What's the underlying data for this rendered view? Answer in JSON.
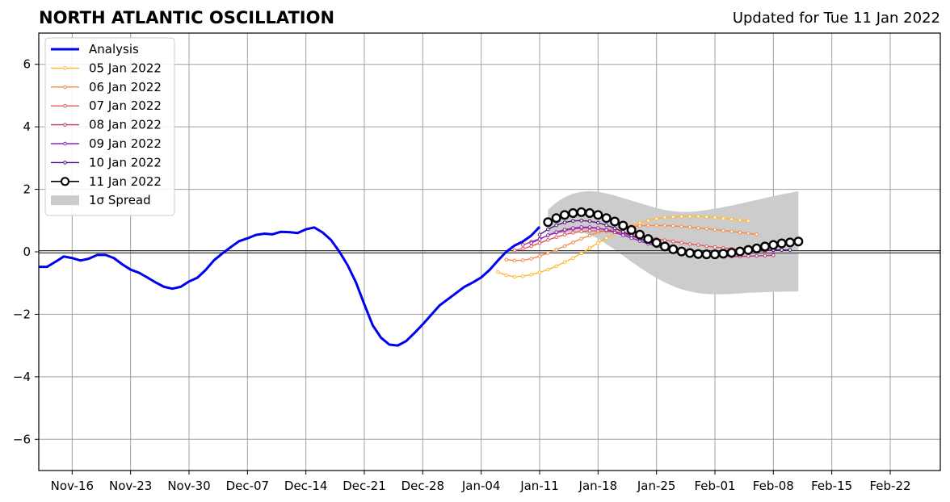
{
  "title": "NORTH ATLANTIC OSCILLATION",
  "subtitle": "Updated for Tue 11 Jan 2022",
  "chart_data": {
    "type": "line",
    "title": "NORTH ATLANTIC OSCILLATION",
    "xlabel": "",
    "ylabel": "",
    "x_unit": "date",
    "xlim": [
      "2021-11-12",
      "2022-02-28"
    ],
    "ylim": [
      -7,
      7
    ],
    "grid": true,
    "legend_position": "top-left",
    "xticks": [
      {
        "date": "2021-11-16",
        "label": "Nov-16"
      },
      {
        "date": "2021-11-23",
        "label": "Nov-23"
      },
      {
        "date": "2021-11-30",
        "label": "Nov-30"
      },
      {
        "date": "2021-12-07",
        "label": "Dec-07"
      },
      {
        "date": "2021-12-14",
        "label": "Dec-14"
      },
      {
        "date": "2021-12-21",
        "label": "Dec-21"
      },
      {
        "date": "2021-12-28",
        "label": "Dec-28"
      },
      {
        "date": "2022-01-04",
        "label": "Jan-04"
      },
      {
        "date": "2022-01-11",
        "label": "Jan-11"
      },
      {
        "date": "2022-01-18",
        "label": "Jan-18"
      },
      {
        "date": "2022-01-25",
        "label": "Jan-25"
      },
      {
        "date": "2022-02-01",
        "label": "Feb-01"
      },
      {
        "date": "2022-02-08",
        "label": "Feb-08"
      },
      {
        "date": "2022-02-15",
        "label": "Feb-15"
      },
      {
        "date": "2022-02-22",
        "label": "Feb-22"
      }
    ],
    "yticks": [
      {
        "value": 6,
        "label": "6"
      },
      {
        "value": 4,
        "label": "4"
      },
      {
        "value": 2,
        "label": "2"
      },
      {
        "value": 0,
        "label": "0"
      },
      {
        "value": -2,
        "label": "−2"
      },
      {
        "value": -4,
        "label": "−4"
      },
      {
        "value": -6,
        "label": "−6"
      }
    ],
    "series": [
      {
        "name": "Analysis",
        "color": "#0000ee",
        "style": "analysis",
        "start": "2021-11-12",
        "values": [
          -0.48,
          -0.48,
          -0.32,
          -0.15,
          -0.2,
          -0.28,
          -0.22,
          -0.1,
          -0.1,
          -0.2,
          -0.4,
          -0.57,
          -0.67,
          -0.82,
          -0.98,
          -1.12,
          -1.18,
          -1.12,
          -0.95,
          -0.83,
          -0.58,
          -0.27,
          -0.05,
          0.15,
          0.34,
          0.43,
          0.54,
          0.58,
          0.56,
          0.64,
          0.63,
          0.6,
          0.72,
          0.78,
          0.62,
          0.38,
          0.01,
          -0.43,
          -0.98,
          -1.68,
          -2.35,
          -2.75,
          -2.97,
          -3.0,
          -2.86,
          -2.6,
          -2.32,
          -2.02,
          -1.72,
          -1.52,
          -1.32,
          -1.12,
          -0.98,
          -0.82,
          -0.58,
          -0.28,
          0.0,
          0.2,
          0.33,
          0.52,
          0.8
        ]
      },
      {
        "name": "05 Jan 2022",
        "color": "#ffb830",
        "style": "small",
        "start": "2022-01-06",
        "values": [
          -0.65,
          -0.75,
          -0.8,
          -0.78,
          -0.73,
          -0.66,
          -0.57,
          -0.46,
          -0.33,
          -0.2,
          -0.05,
          0.12,
          0.28,
          0.44,
          0.58,
          0.7,
          0.82,
          0.92,
          1.0,
          1.06,
          1.1,
          1.12,
          1.13,
          1.13,
          1.13,
          1.12,
          1.1,
          1.07,
          1.04,
          1.02,
          0.99
        ]
      },
      {
        "name": "06 Jan 2022",
        "color": "#f58a47",
        "style": "small",
        "start": "2022-01-07",
        "values": [
          -0.25,
          -0.28,
          -0.27,
          -0.22,
          -0.14,
          -0.04,
          0.07,
          0.18,
          0.3,
          0.42,
          0.52,
          0.62,
          0.69,
          0.75,
          0.79,
          0.81,
          0.83,
          0.84,
          0.84,
          0.84,
          0.83,
          0.81,
          0.79,
          0.76,
          0.74,
          0.71,
          0.68,
          0.65,
          0.62,
          0.59,
          0.56
        ]
      },
      {
        "name": "07 Jan 2022",
        "color": "#e2595c",
        "style": "small",
        "start": "2022-01-08",
        "values": [
          0.05,
          0.1,
          0.18,
          0.28,
          0.38,
          0.47,
          0.55,
          0.61,
          0.65,
          0.67,
          0.67,
          0.66,
          0.63,
          0.6,
          0.56,
          0.52,
          0.47,
          0.42,
          0.37,
          0.33,
          0.29,
          0.25,
          0.22,
          0.18,
          0.15,
          0.12,
          0.1,
          0.07,
          0.05,
          0.03,
          0.01
        ]
      },
      {
        "name": "08 Jan 2022",
        "color": "#b73779",
        "style": "small",
        "start": "2022-01-09",
        "values": [
          0.22,
          0.32,
          0.42,
          0.52,
          0.61,
          0.68,
          0.73,
          0.76,
          0.77,
          0.75,
          0.71,
          0.65,
          0.58,
          0.5,
          0.42,
          0.33,
          0.25,
          0.17,
          0.1,
          0.03,
          -0.02,
          -0.06,
          -0.1,
          -0.12,
          -0.14,
          -0.15,
          -0.15,
          -0.14,
          -0.13,
          -0.12,
          -0.11
        ]
      },
      {
        "name": "09 Jan 2022",
        "color": "#8c29b8",
        "style": "small",
        "start": "2022-01-10",
        "values": [
          0.28,
          0.4,
          0.53,
          0.63,
          0.71,
          0.76,
          0.79,
          0.79,
          0.76,
          0.7,
          0.62,
          0.53,
          0.44,
          0.35,
          0.26,
          0.18,
          0.11,
          0.05,
          0.0,
          -0.04,
          -0.06,
          -0.07,
          -0.07,
          -0.05,
          -0.03,
          -0.01,
          0.01,
          0.03,
          0.04,
          0.05,
          0.06
        ]
      },
      {
        "name": "10 Jan 2022",
        "color": "#51127c",
        "style": "small",
        "start": "2022-01-11",
        "values": [
          0.55,
          0.72,
          0.85,
          0.94,
          0.99,
          1.0,
          0.98,
          0.93,
          0.85,
          0.75,
          0.64,
          0.53,
          0.42,
          0.32,
          0.23,
          0.15,
          0.08,
          0.03,
          -0.01,
          -0.03,
          -0.04,
          -0.04,
          -0.03,
          -0.01,
          0.01,
          0.03,
          0.04,
          0.05,
          0.06,
          0.06,
          0.06
        ]
      },
      {
        "name": "11 Jan 2022",
        "color": "#000000",
        "style": "big",
        "start": "2022-01-12",
        "values": [
          0.95,
          1.08,
          1.18,
          1.24,
          1.27,
          1.24,
          1.18,
          1.08,
          0.97,
          0.84,
          0.7,
          0.55,
          0.41,
          0.29,
          0.17,
          0.08,
          0.01,
          -0.04,
          -0.07,
          -0.08,
          -0.08,
          -0.06,
          -0.03,
          0.01,
          0.06,
          0.11,
          0.17,
          0.22,
          0.27,
          0.3,
          0.33
        ]
      }
    ],
    "spread": {
      "name": "1σ Spread",
      "color": "#cccccc",
      "start": "2022-01-12",
      "upper": [
        1.35,
        1.58,
        1.75,
        1.86,
        1.92,
        1.94,
        1.92,
        1.87,
        1.8,
        1.72,
        1.64,
        1.56,
        1.48,
        1.4,
        1.34,
        1.3,
        1.28,
        1.28,
        1.3,
        1.34,
        1.38,
        1.43,
        1.48,
        1.54,
        1.6,
        1.66,
        1.72,
        1.78,
        1.84,
        1.89,
        1.94
      ],
      "lower": [
        0.55,
        0.58,
        0.6,
        0.62,
        0.62,
        0.55,
        0.42,
        0.25,
        0.07,
        -0.12,
        -0.32,
        -0.5,
        -0.68,
        -0.84,
        -0.98,
        -1.1,
        -1.2,
        -1.27,
        -1.32,
        -1.35,
        -1.36,
        -1.36,
        -1.35,
        -1.33,
        -1.31,
        -1.3,
        -1.29,
        -1.28,
        -1.28,
        -1.27,
        -1.27
      ]
    }
  }
}
